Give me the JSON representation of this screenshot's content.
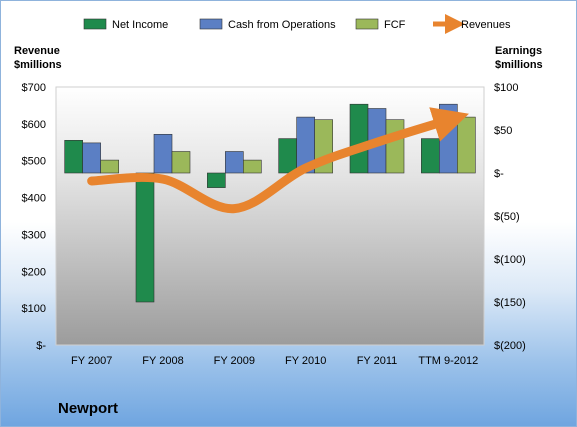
{
  "chart_data": {
    "type": "bar",
    "categories": [
      "FY 2007",
      "FY 2008",
      "FY 2009",
      "FY 2010",
      "FY 2011",
      "TTM 9-2012"
    ],
    "series": [
      {
        "name": "Net Income",
        "axis": "right",
        "kind": "bar",
        "color": "#1f8a4c",
        "values": [
          38,
          -150,
          -17,
          40,
          80,
          40
        ]
      },
      {
        "name": "Cash from Operations",
        "axis": "right",
        "kind": "bar",
        "color": "#5b7fc4",
        "values": [
          35,
          45,
          25,
          65,
          75,
          80
        ]
      },
      {
        "name": "FCF",
        "axis": "right",
        "kind": "bar",
        "color": "#9bb85a",
        "values": [
          15,
          25,
          15,
          62,
          62,
          65
        ]
      },
      {
        "name": "Revenues",
        "axis": "left",
        "kind": "line",
        "color": "#e8842e",
        "values": [
          445,
          450,
          370,
          480,
          550,
          610
        ]
      }
    ],
    "left_axis": {
      "label": "Revenue\n$millions",
      "ylim": [
        0,
        700
      ],
      "ticks": [
        0,
        100,
        200,
        300,
        400,
        500,
        600,
        700
      ],
      "tick_labels": [
        "$-",
        "$100",
        "$200",
        "$300",
        "$400",
        "$500",
        "$600",
        "$700"
      ]
    },
    "right_axis": {
      "label": "Earnings\n$millions",
      "ylim": [
        -200,
        100
      ],
      "ticks": [
        -200,
        -150,
        -100,
        -50,
        0,
        50,
        100
      ],
      "tick_labels": [
        "$(200)",
        "$(150)",
        "$(100)",
        "$(50)",
        "$-",
        "$50",
        "$100"
      ]
    },
    "legend_position": "top",
    "grid": false,
    "company": "Newport"
  }
}
